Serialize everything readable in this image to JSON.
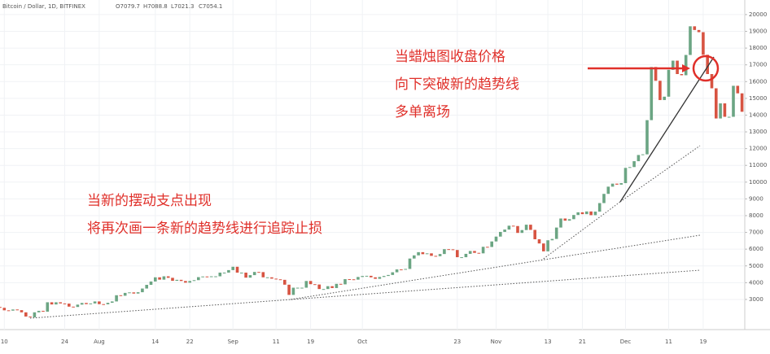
{
  "chart_data": {
    "type": "candlestick",
    "title": "Bitcoin / Dollar, 1D, BITFINEX",
    "ohlc_labels": [
      "O7079.7",
      "H7088.8",
      "L7021.3",
      "C7054.1"
    ],
    "annotations": [
      [
        "当蜡烛图收盘价格",
        "向下突破新的趋势线",
        "多单离场"
      ],
      [
        "当新的摆动支点出现",
        "将再次画一条新的趋势线进行追踪止损"
      ]
    ],
    "up_color": "#6ba583",
    "down_color": "#d75442",
    "categories": [
      null,
      "10",
      null,
      null,
      null,
      null,
      null,
      null,
      null,
      null,
      null,
      null,
      null,
      null,
      null,
      "24",
      null,
      null,
      null,
      null,
      null,
      null,
      null,
      "Aug",
      null,
      null,
      null,
      null,
      null,
      null,
      null,
      null,
      null,
      null,
      null,
      null,
      "14",
      null,
      null,
      null,
      null,
      null,
      null,
      null,
      "22",
      null,
      null,
      null,
      null,
      null,
      null,
      null,
      null,
      null,
      "Sep",
      null,
      null,
      null,
      null,
      null,
      null,
      null,
      null,
      null,
      "11",
      null,
      null,
      null,
      null,
      null,
      null,
      null,
      "19",
      null,
      null,
      null,
      null,
      null,
      null,
      null,
      null,
      null,
      null,
      null,
      "Oct",
      null,
      null,
      null,
      null,
      null,
      null,
      null,
      null,
      null,
      null,
      null,
      null,
      null,
      null,
      null,
      null,
      null,
      null,
      null,
      null,
      null,
      "23",
      null,
      null,
      null,
      null,
      null,
      null,
      null,
      null,
      "Nov",
      null,
      null,
      null,
      null,
      null,
      null,
      null,
      null,
      null,
      null,
      null,
      "13",
      null,
      null,
      null,
      null,
      null,
      null,
      null,
      "21",
      null,
      null,
      null,
      null,
      null,
      null,
      null,
      null,
      null,
      "Dec",
      null,
      null,
      null,
      null,
      null,
      null,
      null,
      null,
      null,
      "11",
      null,
      null,
      null,
      null,
      null,
      null,
      null,
      "19",
      null,
      null,
      null,
      null,
      null,
      null,
      null,
      null,
      null
    ],
    "open": [
      2550,
      2500,
      2350,
      2330,
      2400,
      2360,
      2230,
      1980,
      1930,
      2230,
      2320,
      2270,
      2830,
      2700,
      2830,
      2760,
      2750,
      2570,
      2550,
      2690,
      2790,
      2720,
      2760,
      2880,
      2720,
      2710,
      2800,
      2880,
      3250,
      3220,
      3390,
      3420,
      3350,
      3430,
      3650,
      3870,
      4070,
      4320,
      4180,
      4380,
      4290,
      4110,
      4170,
      4100,
      4000,
      4100,
      4150,
      4330,
      4370,
      4350,
      4380,
      4380,
      4600,
      4600,
      4750,
      4950,
      4600,
      4600,
      4300,
      4450,
      4640,
      4630,
      4320,
      4320,
      4240,
      4200,
      4170,
      3880,
      3270,
      3700,
      3700,
      3700,
      4100,
      3910,
      3890,
      3620,
      3620,
      3790,
      3680,
      3930,
      3900,
      4210,
      4200,
      4180,
      4340,
      4400,
      4410,
      4320,
      4230,
      4340,
      4400,
      4460,
      4620,
      4790,
      4780,
      4820,
      5440,
      5630,
      5820,
      5700,
      5750,
      5600,
      5580,
      5710,
      6000,
      5990,
      5950,
      5520,
      5520,
      5720,
      5890,
      5780,
      5750,
      6140,
      6130,
      6460,
      6750,
      7030,
      7170,
      7400,
      7380,
      6970,
      7140,
      7460,
      7150,
      6590,
      6340,
      5870,
      6530,
      6610,
      7290,
      7830,
      7700,
      7790,
      8040,
      8200,
      8090,
      8250,
      8030,
      8240,
      8750,
      9300,
      9730,
      9910,
      9850,
      9940,
      10850,
      10900,
      11250,
      11620,
      11660,
      13700,
      16870,
      16050,
      14900,
      15100,
      16700,
      17250,
      16450,
      16380,
      17590,
      19300,
      19080,
      18950,
      17600,
      16450,
      15600,
      13800,
      14700,
      13900,
      13900,
      15750,
      15300
    ],
    "close": [
      2500,
      2350,
      2330,
      2400,
      2360,
      2230,
      1980,
      1930,
      2230,
      2320,
      2270,
      2830,
      2700,
      2830,
      2760,
      2750,
      2570,
      2550,
      2690,
      2790,
      2720,
      2760,
      2880,
      2720,
      2710,
      2800,
      2880,
      3250,
      3220,
      3390,
      3420,
      3350,
      3430,
      3650,
      3870,
      4070,
      4320,
      4180,
      4380,
      4290,
      4110,
      4170,
      4100,
      4000,
      4100,
      4150,
      4330,
      4370,
      4350,
      4380,
      4380,
      4600,
      4600,
      4750,
      4950,
      4600,
      4600,
      4300,
      4450,
      4640,
      4630,
      4320,
      4320,
      4240,
      4200,
      4170,
      3880,
      3270,
      3700,
      3700,
      3700,
      4100,
      3910,
      3890,
      3620,
      3620,
      3790,
      3680,
      3930,
      3900,
      4210,
      4200,
      4180,
      4340,
      4400,
      4410,
      4320,
      4230,
      4340,
      4400,
      4460,
      4620,
      4790,
      4780,
      4820,
      5440,
      5630,
      5820,
      5700,
      5750,
      5600,
      5580,
      5710,
      6000,
      5990,
      5950,
      5520,
      5520,
      5720,
      5890,
      5780,
      5750,
      6140,
      6130,
      6460,
      6750,
      7030,
      7170,
      7400,
      7380,
      6970,
      7140,
      7460,
      7150,
      6590,
      6340,
      5870,
      6530,
      6610,
      7290,
      7830,
      7700,
      7790,
      8040,
      8200,
      8090,
      8250,
      8030,
      8240,
      8750,
      9300,
      9730,
      9910,
      9850,
      9940,
      10850,
      10900,
      11250,
      11620,
      11660,
      13700,
      16870,
      16050,
      14900,
      15100,
      16700,
      17250,
      16450,
      16380,
      17590,
      19300,
      19080,
      18950,
      17600,
      16450,
      15600,
      13800,
      14700,
      13900,
      13900,
      15750,
      15300,
      14200
    ],
    "ylim": [
      1200,
      20870
    ],
    "yticks": [
      3000,
      4000,
      5000,
      6000,
      7000,
      8000,
      9000,
      10000,
      11000,
      12000,
      13000,
      14000,
      15000,
      16000,
      17000,
      18000,
      19000,
      20000
    ]
  }
}
